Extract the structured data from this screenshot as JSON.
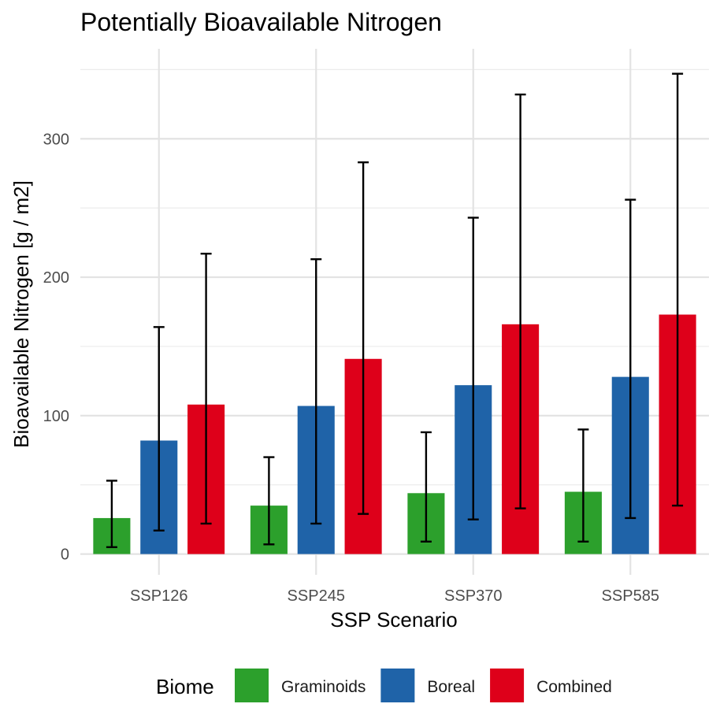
{
  "chart_data": {
    "type": "bar",
    "title": "Potentially Bioavailable Nitrogen",
    "xlabel": "SSP Scenario",
    "ylabel": "Bioavailable Nitrogen [g / m2]",
    "categories": [
      "SSP126",
      "SSP245",
      "SSP370",
      "SSP585"
    ],
    "ylim": [
      -15,
      365
    ],
    "y_ticks": [
      "0",
      "100",
      "200",
      "300"
    ],
    "grid": true,
    "legend_title": "Biome",
    "legend_position": "bottom",
    "series": [
      {
        "name": "Graminoids",
        "color": "#2ca02c",
        "values": [
          26,
          35,
          44,
          45
        ],
        "error_low": [
          5,
          7,
          9,
          9
        ],
        "error_high": [
          53,
          70,
          88,
          90
        ]
      },
      {
        "name": "Boreal",
        "color": "#1f63a8",
        "values": [
          82,
          107,
          122,
          128
        ],
        "error_low": [
          17,
          22,
          25,
          26
        ],
        "error_high": [
          164,
          213,
          243,
          256
        ]
      },
      {
        "name": "Combined",
        "color": "#de001a",
        "values": [
          108,
          141,
          166,
          173
        ],
        "error_low": [
          22,
          29,
          33,
          35
        ],
        "error_high": [
          217,
          283,
          332,
          347
        ]
      }
    ]
  }
}
